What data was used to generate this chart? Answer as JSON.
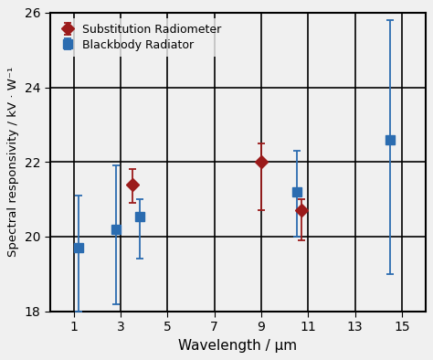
{
  "substitution_radiometer": {
    "x": [
      3.5,
      9.0,
      10.7
    ],
    "y": [
      21.4,
      22.0,
      20.7
    ],
    "yerr_low": [
      0.5,
      1.3,
      0.8
    ],
    "yerr_high": [
      0.4,
      0.5,
      0.3
    ],
    "color": "#9B1B1B",
    "marker": "D",
    "markersize": 7,
    "label": "Substitution Radiometer"
  },
  "blackbody_radiator": {
    "x": [
      1.2,
      2.8,
      3.8,
      10.5,
      14.5
    ],
    "y": [
      19.7,
      20.2,
      20.55,
      21.2,
      22.6
    ],
    "yerr_low": [
      1.7,
      2.0,
      1.15,
      1.2,
      3.6
    ],
    "yerr_high": [
      1.4,
      1.7,
      0.45,
      1.1,
      3.2
    ],
    "color": "#2B6CB0",
    "marker": "s",
    "markersize": 7,
    "label": "Blackbody Radiator"
  },
  "xlabel": "Wavelength / μm",
  "ylabel": "Spectral responsivity / kV · W⁻¹",
  "xlim": [
    0,
    16
  ],
  "ylim": [
    18,
    26
  ],
  "xticks": [
    1,
    3,
    5,
    7,
    9,
    11,
    13,
    15
  ],
  "yticks": [
    18,
    20,
    22,
    24,
    26
  ],
  "figsize": [
    4.74,
    3.94
  ],
  "dpi": 100,
  "bg_color": "#f0f0f0"
}
